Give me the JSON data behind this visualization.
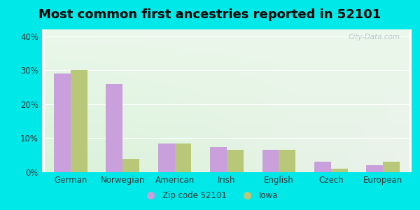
{
  "title": "Most common first ancestries reported in 52101",
  "categories": [
    "German",
    "Norwegian",
    "American",
    "Irish",
    "English",
    "Czech",
    "European"
  ],
  "zip_values": [
    29.0,
    26.0,
    8.5,
    7.5,
    6.5,
    3.0,
    2.0
  ],
  "iowa_values": [
    30.0,
    4.0,
    8.5,
    6.5,
    6.5,
    1.0,
    3.0
  ],
  "zip_color": "#c9a0dc",
  "iowa_color": "#b8c878",
  "bg_outer": "#00e8e8",
  "ylim": [
    0,
    42
  ],
  "yticks": [
    0,
    10,
    20,
    30,
    40
  ],
  "ytick_labels": [
    "0%",
    "10%",
    "20%",
    "30%",
    "40%"
  ],
  "legend_zip_label": "Zip code 52101",
  "legend_iowa_label": "Iowa",
  "title_fontsize": 13,
  "watermark": "City-Data.com",
  "tick_color": "#333333",
  "label_color": "#333333"
}
